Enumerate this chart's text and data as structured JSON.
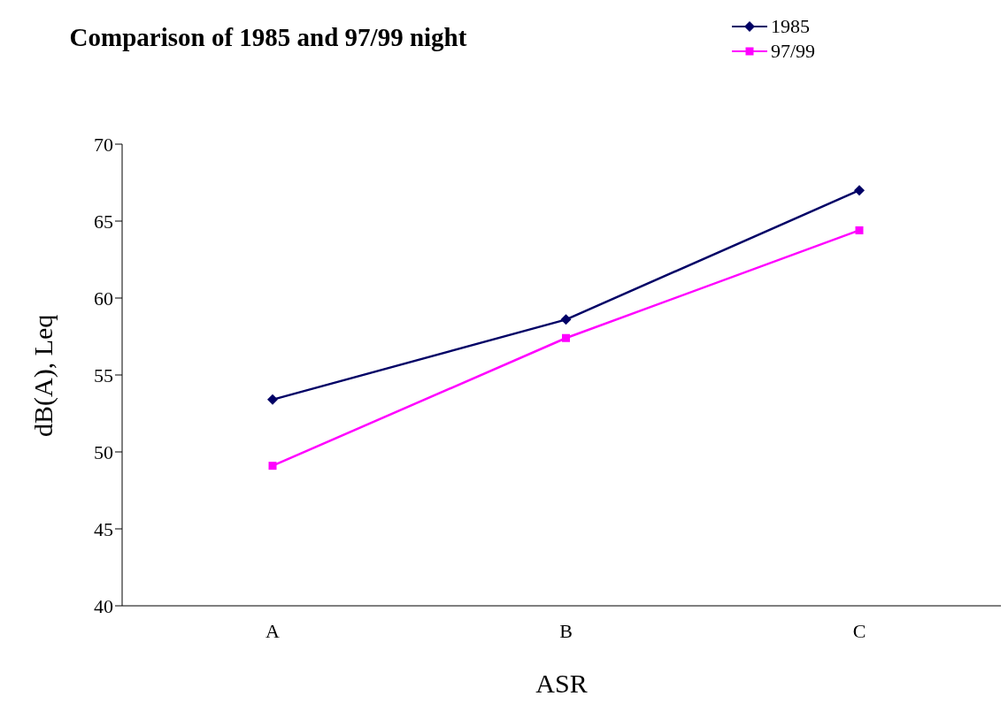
{
  "chart_data": {
    "type": "line",
    "title": "Comparison of 1985 and 97/99 night",
    "xlabel": "ASR",
    "ylabel": "dB(A), Leq",
    "categories": [
      "A",
      "B",
      "C"
    ],
    "series": [
      {
        "name": "1985",
        "color": "#000066",
        "values": [
          53.4,
          58.6,
          67.0
        ],
        "marker": "diamond"
      },
      {
        "name": "97/99",
        "color": "#ff00ff",
        "values": [
          49.1,
          57.4,
          64.4
        ],
        "marker": "square"
      }
    ],
    "ylim": [
      40,
      70
    ],
    "yticks": [
      40,
      45,
      50,
      55,
      60,
      65,
      70
    ],
    "grid": false,
    "legend": "top right",
    "line_style": "solid"
  }
}
